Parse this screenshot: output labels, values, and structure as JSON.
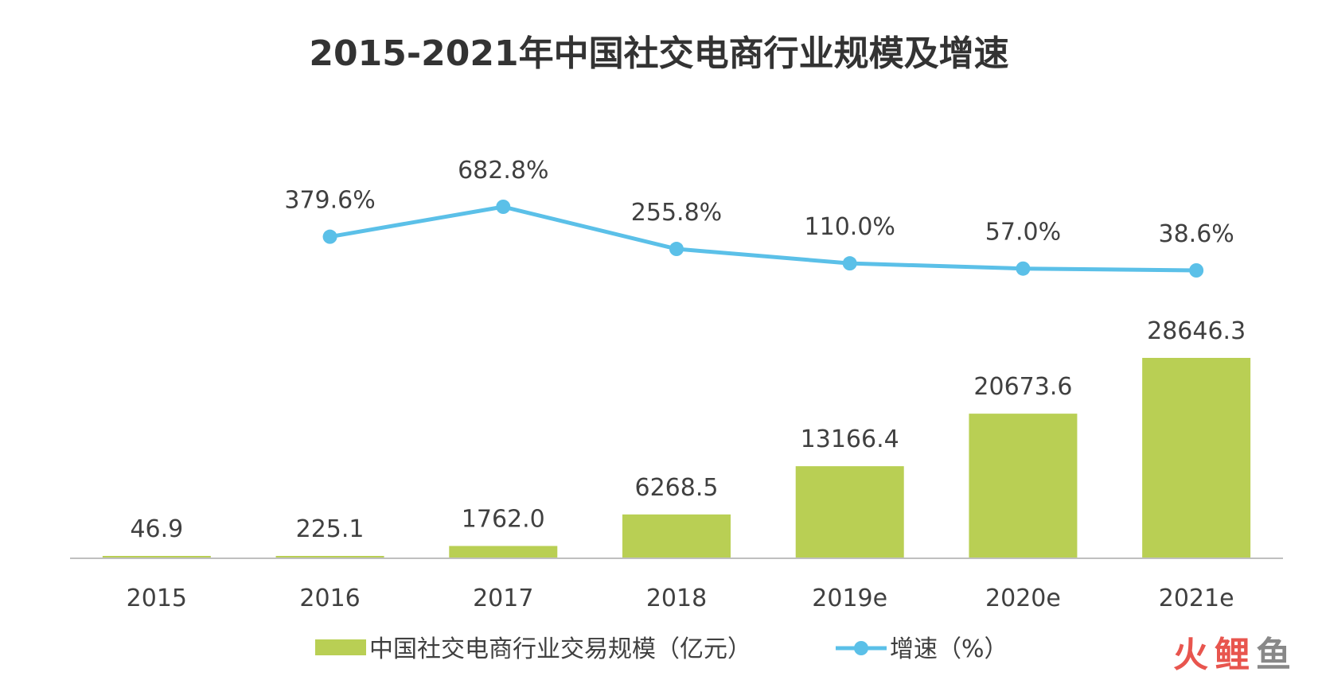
{
  "chart_data": {
    "type": "bar",
    "title": "2015-2021年中国社交电商行业规模及增速",
    "categories": [
      "2015",
      "2016",
      "2017",
      "2018",
      "2019e",
      "2020e",
      "2021e"
    ],
    "series": [
      {
        "name": "中国社交电商行业交易规模（亿元）",
        "type": "bar",
        "color": "#b9cf54",
        "values": [
          46.9,
          225.1,
          1762.0,
          6268.5,
          13166.4,
          20673.6,
          28646.3
        ],
        "labels": [
          "46.9",
          "225.1",
          "1762.0",
          "6268.5",
          "13166.4",
          "20673.6",
          "28646.3"
        ]
      },
      {
        "name": "增速（%）",
        "type": "line",
        "color": "#5bc0e8",
        "values": [
          null,
          379.6,
          682.8,
          255.8,
          110.0,
          57.0,
          38.6
        ],
        "labels": [
          "",
          "379.6%",
          "682.8%",
          "255.8%",
          "110.0%",
          "57.0%",
          "38.6%"
        ]
      }
    ],
    "legend_placement": "bottom",
    "grid": false
  },
  "watermark": {
    "chars": [
      "火",
      "鲤",
      "鱼"
    ],
    "colors": [
      "#e8554e",
      "#e8554e",
      "#888888"
    ]
  }
}
